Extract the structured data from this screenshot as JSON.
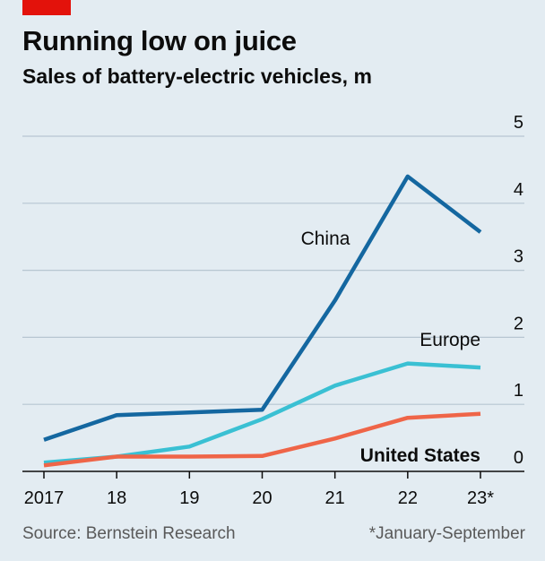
{
  "header": {
    "title": "Running low on juice",
    "subtitle": "Sales of battery-electric vehicles, m"
  },
  "footer": {
    "source": "Source: Bernstein Research",
    "note": "*January-September"
  },
  "colors": {
    "background": "#e3ecf2",
    "gridline": "#b7c6d1",
    "axis": "#0c0c0c",
    "china": "#1467a0",
    "europe": "#3ac0d3",
    "us": "#ef6548",
    "brand": "#e3120b"
  },
  "chart_data": {
    "type": "line",
    "title": "Running low on juice",
    "subtitle": "Sales of battery-electric vehicles, m",
    "x": [
      2017,
      2018,
      2019,
      2020,
      2021,
      2022,
      2023
    ],
    "x_tick_labels": [
      "2017",
      "18",
      "19",
      "20",
      "21",
      "22",
      "23*"
    ],
    "y_ticks": [
      0,
      1,
      2,
      3,
      4,
      5
    ],
    "ylim": [
      0,
      5
    ],
    "grid": true,
    "legend": "direct labels on lines",
    "series": [
      {
        "name": "China",
        "values": [
          0.47,
          0.84,
          0.88,
          0.92,
          2.55,
          4.4,
          3.57
        ],
        "color": "#1467a0",
        "label_bold": false
      },
      {
        "name": "Europe",
        "values": [
          0.13,
          0.22,
          0.37,
          0.78,
          1.28,
          1.61,
          1.55
        ],
        "color": "#3ac0d3",
        "label_bold": false
      },
      {
        "name": "United States",
        "values": [
          0.09,
          0.22,
          0.22,
          0.23,
          0.49,
          0.8,
          0.86
        ],
        "color": "#ef6548",
        "label_bold": true
      }
    ]
  }
}
